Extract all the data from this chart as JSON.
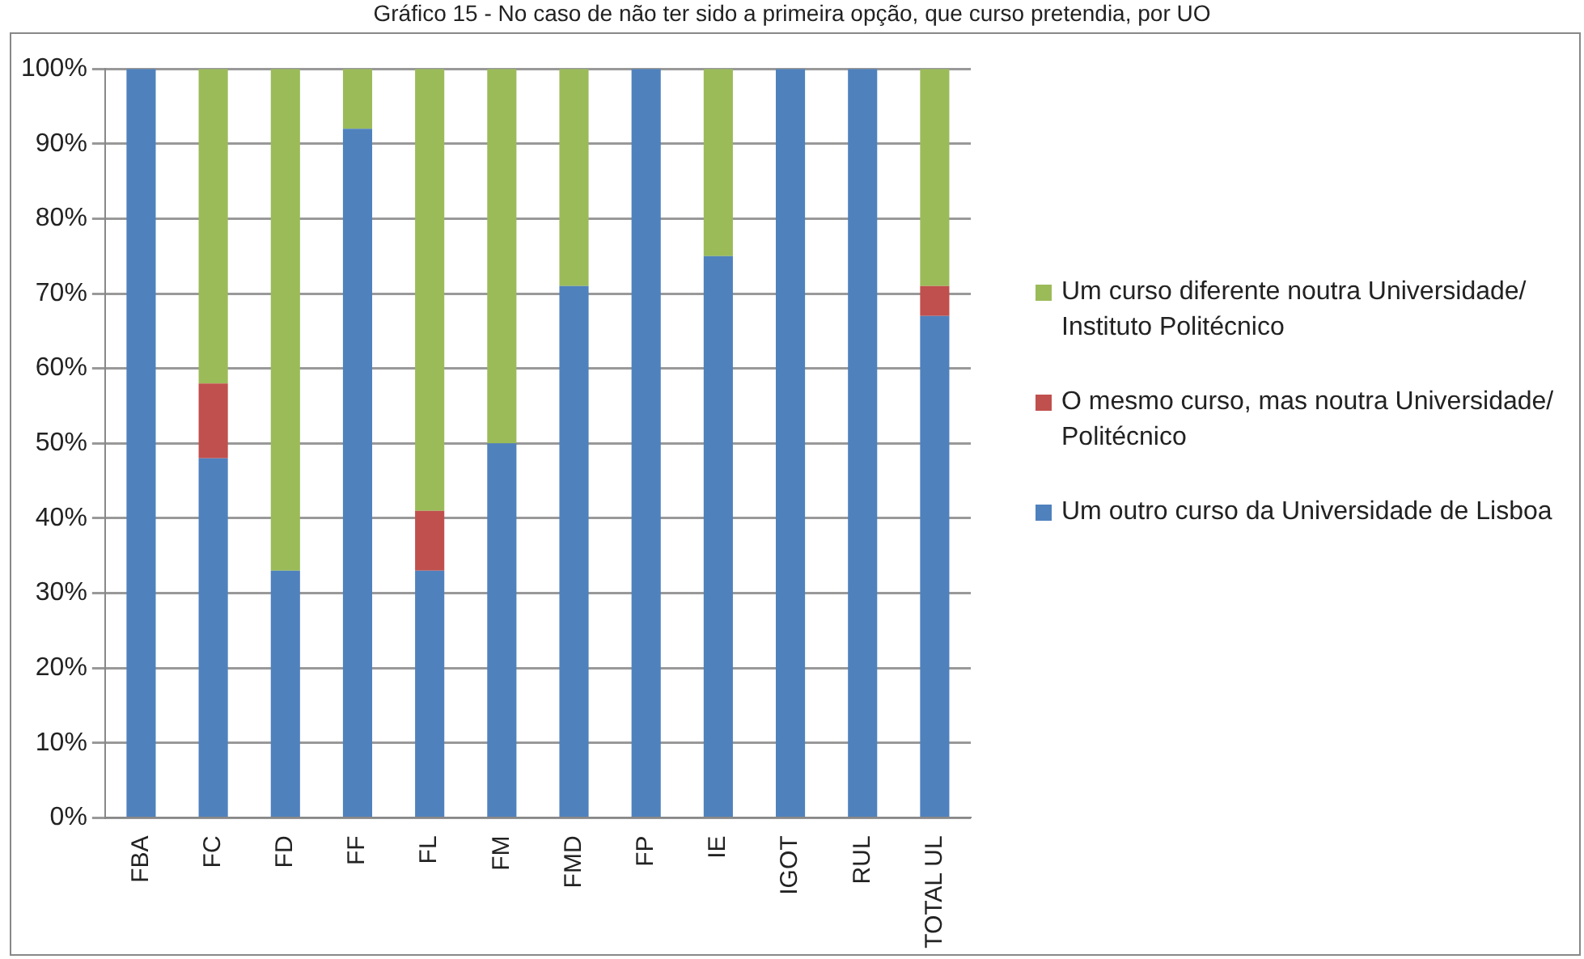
{
  "chart_data": {
    "type": "bar",
    "title": "Gráfico 15 - No caso de não ter sido a primeira opção, que curso pretendia, por UO",
    "categories": [
      "FBA",
      "FC",
      "FD",
      "FF",
      "FL",
      "FM",
      "FMD",
      "FP",
      "IE",
      "IGOT",
      "RUL",
      "TOTAL UL"
    ],
    "series": [
      {
        "name": "Um outro curso da Universidade de Lisboa",
        "color": "#4f81bd",
        "values": [
          100,
          48,
          33,
          92,
          33,
          50,
          71,
          100,
          75,
          100,
          100,
          67
        ]
      },
      {
        "name": "O mesmo curso, mas noutra Universidade/ Politécnico",
        "color": "#c0504d",
        "values": [
          0,
          10,
          0,
          0,
          8,
          0,
          0,
          0,
          0,
          0,
          0,
          4
        ]
      },
      {
        "name": "Um curso diferente noutra Universidade/ Instituto Politécnico",
        "color": "#9bbb59",
        "values": [
          0,
          42,
          67,
          8,
          59,
          50,
          29,
          0,
          25,
          0,
          0,
          29
        ]
      }
    ],
    "stacked": true,
    "ylim": [
      0,
      100
    ],
    "yticks": [
      {
        "value": 0,
        "label": "0%"
      },
      {
        "value": 10,
        "label": "10%"
      },
      {
        "value": 20,
        "label": "20%"
      },
      {
        "value": 30,
        "label": "30%"
      },
      {
        "value": 40,
        "label": "40%"
      },
      {
        "value": 50,
        "label": "50%"
      },
      {
        "value": 60,
        "label": "60%"
      },
      {
        "value": 70,
        "label": "70%"
      },
      {
        "value": 80,
        "label": "80%"
      },
      {
        "value": 90,
        "label": "90%"
      },
      {
        "value": 100,
        "label": "100%"
      }
    ],
    "grid": "y",
    "legend": "right"
  }
}
